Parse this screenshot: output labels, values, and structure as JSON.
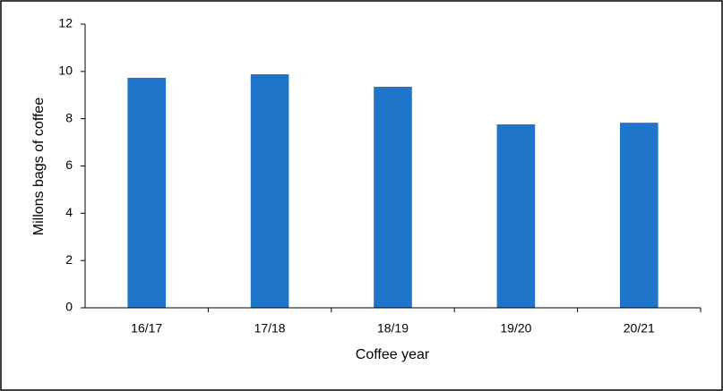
{
  "chart_data": {
    "type": "bar",
    "categories": [
      "16/17",
      "17/18",
      "18/19",
      "19/20",
      "20/21"
    ],
    "values": [
      9.73,
      9.88,
      9.35,
      7.76,
      7.83
    ],
    "color": "#1f75c9",
    "xlabel": "Coffee year",
    "ylabel": "Millons bags of coffee",
    "ylim": [
      0,
      12
    ],
    "yticks": [
      0,
      2,
      4,
      6,
      8,
      10,
      12
    ],
    "grid": false
  }
}
